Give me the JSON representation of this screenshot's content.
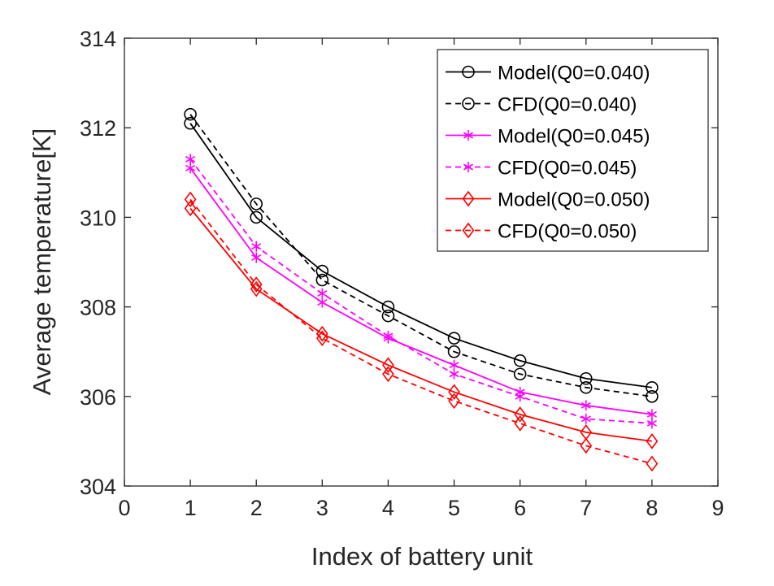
{
  "chart_data": {
    "type": "line",
    "title": "",
    "xlabel": "Index of battery unit",
    "ylabel": "Average temperature[K]",
    "xlim": [
      0,
      9
    ],
    "ylim": [
      304,
      314
    ],
    "xticks": [
      0,
      1,
      2,
      3,
      4,
      5,
      6,
      7,
      8,
      9
    ],
    "yticks": [
      304,
      306,
      308,
      310,
      312,
      314
    ],
    "x": [
      1,
      2,
      3,
      4,
      5,
      6,
      7,
      8
    ],
    "grid": false,
    "legend_position": "top-right",
    "series": [
      {
        "name": "Model(Q0=0.040)",
        "color": "#000000",
        "dash": "solid",
        "marker": "circle",
        "values": [
          312.1,
          310.0,
          308.8,
          308.0,
          307.3,
          306.8,
          306.4,
          306.2
        ]
      },
      {
        "name": "CFD(Q0=0.040)",
        "color": "#000000",
        "dash": "dashed",
        "marker": "circle",
        "values": [
          312.3,
          310.3,
          308.6,
          307.8,
          307.0,
          306.5,
          306.2,
          306.0
        ]
      },
      {
        "name": "Model(Q0=0.045)",
        "color": "#ff00ff",
        "dash": "solid",
        "marker": "asterisk",
        "values": [
          311.1,
          309.1,
          308.1,
          307.3,
          306.7,
          306.1,
          305.8,
          305.6
        ]
      },
      {
        "name": "CFD(Q0=0.045)",
        "color": "#ff00ff",
        "dash": "dashed",
        "marker": "asterisk",
        "values": [
          311.3,
          309.35,
          308.3,
          307.35,
          306.5,
          306.0,
          305.5,
          305.4
        ]
      },
      {
        "name": "Model(Q0=0.050)",
        "color": "#ff0000",
        "dash": "solid",
        "marker": "diamond",
        "values": [
          310.2,
          308.4,
          307.4,
          306.7,
          306.1,
          305.6,
          305.2,
          305.0
        ]
      },
      {
        "name": "CFD(Q0=0.050)",
        "color": "#ff0000",
        "dash": "dashed",
        "marker": "diamond",
        "values": [
          310.4,
          308.5,
          307.3,
          306.5,
          305.9,
          305.4,
          304.9,
          304.5
        ]
      }
    ]
  }
}
